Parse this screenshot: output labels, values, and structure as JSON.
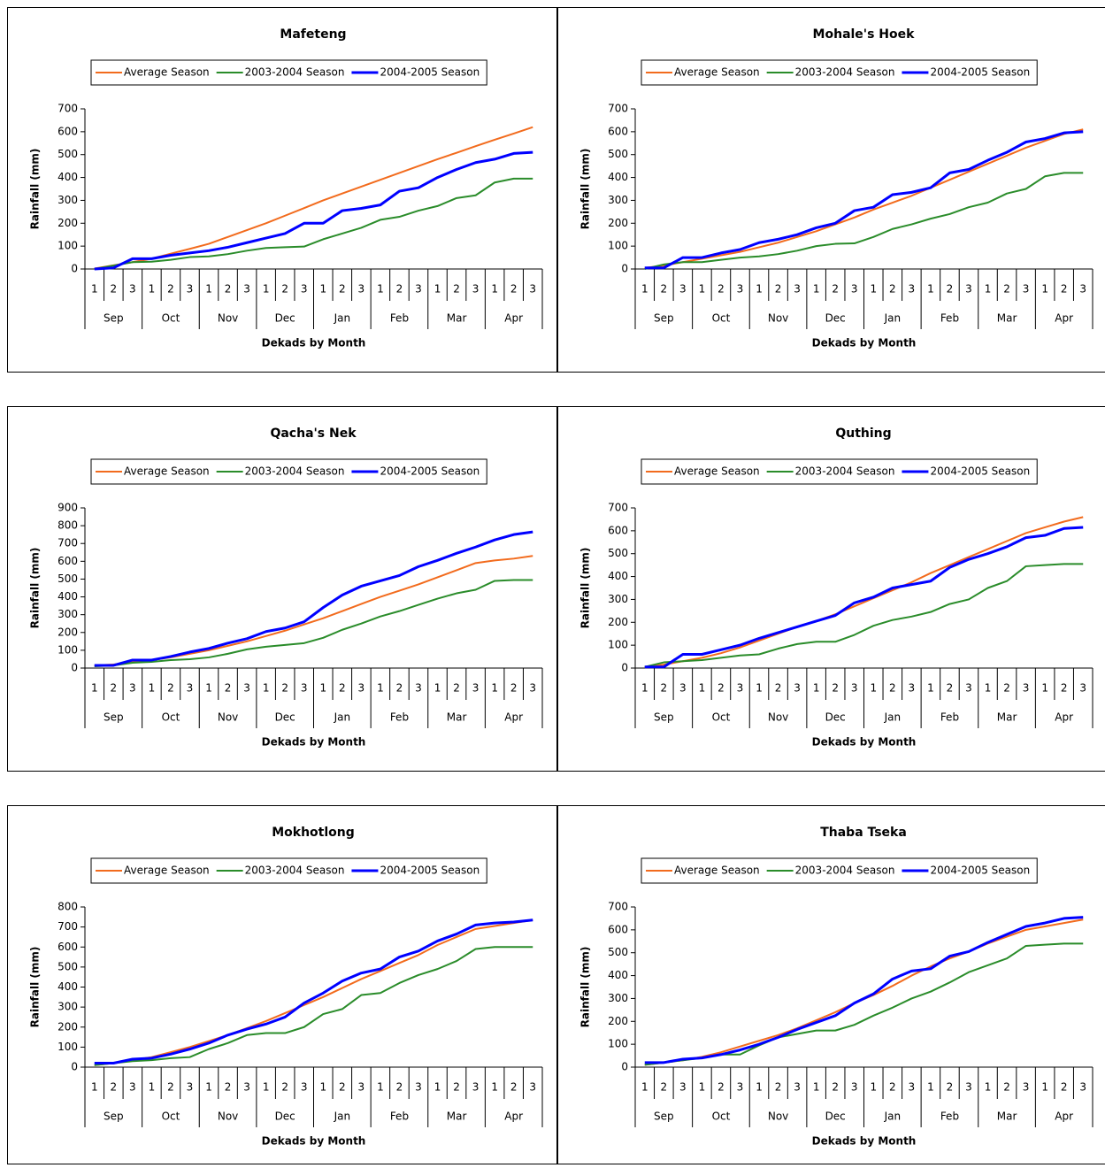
{
  "chart_data": [
    {
      "type": "line",
      "title": "Mafeteng",
      "x_label": "Dekads by Month",
      "y_label": "Rainfall (mm)",
      "categories": [
        "1",
        "2",
        "3",
        "1",
        "2",
        "3",
        "1",
        "2",
        "3",
        "1",
        "2",
        "3",
        "1",
        "2",
        "3",
        "1",
        "2",
        "3",
        "1",
        "2",
        "3",
        "1",
        "2",
        "3"
      ],
      "groups": [
        "Sep",
        "Oct",
        "Nov",
        "Dec",
        "Jan",
        "Feb",
        "Mar",
        "Apr"
      ],
      "ylim": [
        0,
        700
      ],
      "yticks": [
        0,
        100,
        200,
        300,
        400,
        500,
        600,
        700
      ],
      "legend": "top",
      "series": [
        {
          "name": "Average Season",
          "color": "#f26b1d",
          "values": [
            2,
            16,
            30,
            45,
            67,
            88,
            110,
            140,
            170,
            200,
            233,
            266,
            300,
            330,
            360,
            390,
            420,
            450,
            480,
            508,
            537,
            565,
            592,
            620
          ]
        },
        {
          "name": "2003-2004 Season",
          "color": "#2a8c2a",
          "values": [
            0,
            15,
            30,
            32,
            40,
            52,
            55,
            65,
            80,
            92,
            95,
            98,
            130,
            155,
            180,
            215,
            228,
            255,
            275,
            310,
            322,
            378,
            395,
            395
          ]
        },
        {
          "name": "2004-2005 Season",
          "color": "#0000ff",
          "values": [
            0,
            5,
            45,
            45,
            60,
            70,
            80,
            95,
            115,
            135,
            155,
            200,
            200,
            255,
            265,
            280,
            340,
            355,
            400,
            435,
            465,
            480,
            505,
            510
          ]
        }
      ]
    },
    {
      "type": "line",
      "title": "Mohale's Hoek",
      "x_label": "Dekads by Month",
      "y_label": "Rainfall (mm)",
      "categories": [
        "1",
        "2",
        "3",
        "1",
        "2",
        "3",
        "1",
        "2",
        "3",
        "1",
        "2",
        "3",
        "1",
        "2",
        "3",
        "1",
        "2",
        "3",
        "1",
        "2",
        "3",
        "1",
        "2",
        "3"
      ],
      "groups": [
        "Sep",
        "Oct",
        "Nov",
        "Dec",
        "Jan",
        "Feb",
        "Mar",
        "Apr"
      ],
      "ylim": [
        0,
        700
      ],
      "yticks": [
        0,
        100,
        200,
        300,
        400,
        500,
        600,
        700
      ],
      "legend": "top",
      "series": [
        {
          "name": "Average Season",
          "color": "#f26b1d",
          "values": [
            5,
            15,
            30,
            45,
            60,
            75,
            95,
            115,
            140,
            165,
            195,
            225,
            260,
            290,
            320,
            355,
            390,
            425,
            460,
            495,
            530,
            560,
            590,
            610
          ]
        },
        {
          "name": "2003-2004 Season",
          "color": "#2a8c2a",
          "values": [
            0,
            20,
            30,
            30,
            40,
            50,
            55,
            65,
            80,
            100,
            110,
            112,
            140,
            175,
            195,
            220,
            240,
            270,
            290,
            330,
            350,
            405,
            420,
            420
          ]
        },
        {
          "name": "2004-2005 Season",
          "color": "#0000ff",
          "values": [
            5,
            5,
            50,
            50,
            70,
            85,
            115,
            130,
            150,
            180,
            200,
            255,
            270,
            325,
            335,
            355,
            420,
            435,
            475,
            510,
            555,
            570,
            595,
            600
          ]
        }
      ]
    },
    {
      "type": "line",
      "title": "Qacha's Nek",
      "x_label": "Dekads by Month",
      "y_label": "Rainfall (mm)",
      "categories": [
        "1",
        "2",
        "3",
        "1",
        "2",
        "3",
        "1",
        "2",
        "3",
        "1",
        "2",
        "3",
        "1",
        "2",
        "3",
        "1",
        "2",
        "3",
        "1",
        "2",
        "3",
        "1",
        "2",
        "3"
      ],
      "groups": [
        "Sep",
        "Oct",
        "Nov",
        "Dec",
        "Jan",
        "Feb",
        "Mar",
        "Apr"
      ],
      "ylim": [
        0,
        900
      ],
      "yticks": [
        0,
        100,
        200,
        300,
        400,
        500,
        600,
        700,
        800,
        900
      ],
      "legend": "top",
      "series": [
        {
          "name": "Average Season",
          "color": "#f26b1d",
          "values": [
            15,
            20,
            35,
            45,
            60,
            80,
            100,
            125,
            150,
            180,
            210,
            245,
            280,
            320,
            360,
            400,
            435,
            470,
            510,
            550,
            590,
            605,
            615,
            630
          ]
        },
        {
          "name": "2003-2004 Season",
          "color": "#2a8c2a",
          "values": [
            10,
            15,
            30,
            35,
            45,
            50,
            60,
            80,
            105,
            120,
            130,
            140,
            170,
            215,
            250,
            290,
            320,
            355,
            390,
            420,
            440,
            490,
            495,
            495
          ]
        },
        {
          "name": "2004-2005 Season",
          "color": "#0000ff",
          "values": [
            15,
            15,
            45,
            45,
            65,
            90,
            110,
            140,
            165,
            205,
            225,
            260,
            340,
            410,
            460,
            490,
            520,
            570,
            605,
            645,
            680,
            720,
            750,
            765
          ]
        }
      ]
    },
    {
      "type": "line",
      "title": "Quthing",
      "x_label": "Dekads by Month",
      "y_label": "Rainfall (mm)",
      "categories": [
        "1",
        "2",
        "3",
        "1",
        "2",
        "3",
        "1",
        "2",
        "3",
        "1",
        "2",
        "3",
        "1",
        "2",
        "3",
        "1",
        "2",
        "3",
        "1",
        "2",
        "3",
        "1",
        "2",
        "3"
      ],
      "groups": [
        "Sep",
        "Oct",
        "Nov",
        "Dec",
        "Jan",
        "Feb",
        "Mar",
        "Apr"
      ],
      "ylim": [
        0,
        700
      ],
      "yticks": [
        0,
        100,
        200,
        300,
        400,
        500,
        600,
        700
      ],
      "legend": "top",
      "series": [
        {
          "name": "Average Season",
          "color": "#f26b1d",
          "values": [
            5,
            15,
            30,
            45,
            65,
            90,
            120,
            150,
            180,
            205,
            235,
            270,
            305,
            340,
            375,
            415,
            450,
            485,
            520,
            555,
            590,
            615,
            640,
            660
          ]
        },
        {
          "name": "2003-2004 Season",
          "color": "#2a8c2a",
          "values": [
            5,
            25,
            30,
            35,
            45,
            55,
            60,
            85,
            105,
            115,
            115,
            145,
            185,
            210,
            225,
            245,
            280,
            300,
            350,
            380,
            445,
            450,
            455,
            455
          ]
        },
        {
          "name": "2004-2005 Season",
          "color": "#0000ff",
          "values": [
            5,
            5,
            60,
            60,
            80,
            100,
            130,
            155,
            180,
            205,
            230,
            285,
            310,
            350,
            365,
            380,
            440,
            475,
            500,
            530,
            570,
            580,
            610,
            615
          ]
        }
      ]
    },
    {
      "type": "line",
      "title": "Mokhotlong",
      "x_label": "Dekads by Month",
      "y_label": "Rainfall (mm)",
      "categories": [
        "1",
        "2",
        "3",
        "1",
        "2",
        "3",
        "1",
        "2",
        "3",
        "1",
        "2",
        "3",
        "1",
        "2",
        "3",
        "1",
        "2",
        "3",
        "1",
        "2",
        "3",
        "1",
        "2",
        "3"
      ],
      "groups": [
        "Sep",
        "Oct",
        "Nov",
        "Dec",
        "Jan",
        "Feb",
        "Mar",
        "Apr"
      ],
      "ylim": [
        0,
        800
      ],
      "yticks": [
        0,
        100,
        200,
        300,
        400,
        500,
        600,
        700,
        800
      ],
      "legend": "top",
      "series": [
        {
          "name": "Average Season",
          "color": "#f26b1d",
          "values": [
            10,
            20,
            35,
            50,
            75,
            100,
            130,
            160,
            195,
            230,
            270,
            310,
            350,
            395,
            440,
            480,
            520,
            560,
            610,
            650,
            690,
            705,
            720,
            735
          ]
        },
        {
          "name": "2003-2004 Season",
          "color": "#2a8c2a",
          "values": [
            10,
            20,
            30,
            35,
            45,
            50,
            90,
            120,
            160,
            170,
            170,
            200,
            265,
            290,
            360,
            370,
            420,
            460,
            490,
            530,
            590,
            600,
            600,
            600
          ]
        },
        {
          "name": "2004-2005 Season",
          "color": "#0000ff",
          "values": [
            20,
            20,
            40,
            45,
            65,
            90,
            120,
            160,
            190,
            215,
            250,
            320,
            370,
            430,
            470,
            490,
            550,
            580,
            630,
            665,
            710,
            720,
            725,
            735
          ]
        }
      ]
    },
    {
      "type": "line",
      "title": "Thaba Tseka",
      "x_label": "Dekads by Month",
      "y_label": "Rainfall (mm)",
      "categories": [
        "1",
        "2",
        "3",
        "1",
        "2",
        "3",
        "1",
        "2",
        "3",
        "1",
        "2",
        "3",
        "1",
        "2",
        "3",
        "1",
        "2",
        "3",
        "1",
        "2",
        "3",
        "1",
        "2",
        "3"
      ],
      "groups": [
        "Sep",
        "Oct",
        "Nov",
        "Dec",
        "Jan",
        "Feb",
        "Mar",
        "Apr"
      ],
      "ylim": [
        0,
        700
      ],
      "yticks": [
        0,
        100,
        200,
        300,
        400,
        500,
        600,
        700
      ],
      "legend": "top",
      "series": [
        {
          "name": "Average Season",
          "color": "#f26b1d",
          "values": [
            10,
            20,
            30,
            45,
            65,
            90,
            115,
            140,
            170,
            205,
            240,
            280,
            315,
            355,
            400,
            440,
            475,
            505,
            540,
            570,
            600,
            615,
            630,
            645
          ]
        },
        {
          "name": "2003-2004 Season",
          "color": "#2a8c2a",
          "values": [
            10,
            20,
            30,
            40,
            55,
            55,
            95,
            130,
            145,
            160,
            160,
            185,
            225,
            260,
            300,
            330,
            370,
            415,
            445,
            475,
            530,
            535,
            540,
            540
          ]
        },
        {
          "name": "2004-2005 Season",
          "color": "#0000ff",
          "values": [
            20,
            20,
            35,
            40,
            55,
            75,
            100,
            130,
            165,
            195,
            225,
            280,
            320,
            385,
            420,
            430,
            485,
            505,
            545,
            580,
            615,
            630,
            650,
            655
          ]
        }
      ]
    }
  ]
}
